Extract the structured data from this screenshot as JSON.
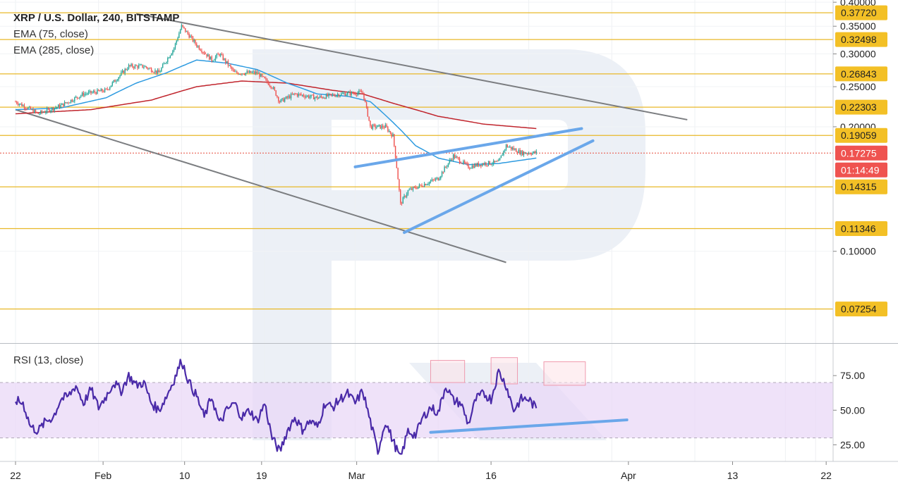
{
  "chart_data": [
    {
      "type": "candlestick",
      "title": "XRP / U.S. Dollar, 240, BITSTAMP",
      "indicators": [
        "EMA (75, close)",
        "EMA (285, close)"
      ],
      "x_ticks": [
        "22",
        "Feb",
        "10",
        "19",
        "Mar",
        "16",
        "Apr",
        "13",
        "22"
      ],
      "y_ticks": [
        "0.40000",
        "0.35000",
        "0.30000",
        "0.25000",
        "0.20000",
        "0.10000"
      ],
      "ylim": [
        0.06,
        0.405
      ],
      "scale": "log",
      "levels": [
        {
          "label": "0.37720",
          "value": 0.3772
        },
        {
          "label": "0.32498",
          "value": 0.32498
        },
        {
          "label": "0.26843",
          "value": 0.26843
        },
        {
          "label": "0.22303",
          "value": 0.22303
        },
        {
          "label": "0.19059",
          "value": 0.19059
        },
        {
          "label": "0.14315",
          "value": 0.14315
        },
        {
          "label": "0.11346",
          "value": 0.11346
        },
        {
          "label": "0.07254",
          "value": 0.07254
        }
      ],
      "current_price": {
        "label": "0.17275",
        "value": 0.17275,
        "countdown": "01:14:49"
      },
      "key_closes": [
        {
          "day": 0,
          "price": 0.23
        },
        {
          "day": 3,
          "price": 0.215
        },
        {
          "day": 6,
          "price": 0.225
        },
        {
          "day": 9,
          "price": 0.24
        },
        {
          "day": 12,
          "price": 0.245
        },
        {
          "day": 15,
          "price": 0.28
        },
        {
          "day": 17,
          "price": 0.28
        },
        {
          "day": 19,
          "price": 0.27
        },
        {
          "day": 21,
          "price": 0.31
        },
        {
          "day": 22,
          "price": 0.35
        },
        {
          "day": 24,
          "price": 0.315
        },
        {
          "day": 26,
          "price": 0.29
        },
        {
          "day": 27,
          "price": 0.3
        },
        {
          "day": 29,
          "price": 0.27
        },
        {
          "day": 32,
          "price": 0.27
        },
        {
          "day": 34,
          "price": 0.25
        },
        {
          "day": 35,
          "price": 0.23
        },
        {
          "day": 37,
          "price": 0.24
        },
        {
          "day": 40,
          "price": 0.235
        },
        {
          "day": 43,
          "price": 0.24
        },
        {
          "day": 46,
          "price": 0.242
        },
        {
          "day": 47,
          "price": 0.2
        },
        {
          "day": 49,
          "price": 0.2
        },
        {
          "day": 50,
          "price": 0.19
        },
        {
          "day": 51,
          "price": 0.13
        },
        {
          "day": 52,
          "price": 0.14
        },
        {
          "day": 54,
          "price": 0.145
        },
        {
          "day": 56,
          "price": 0.15
        },
        {
          "day": 58,
          "price": 0.17
        },
        {
          "day": 60,
          "price": 0.16
        },
        {
          "day": 62,
          "price": 0.163
        },
        {
          "day": 64,
          "price": 0.164
        },
        {
          "day": 65,
          "price": 0.18
        },
        {
          "day": 67,
          "price": 0.173
        },
        {
          "day": 69,
          "price": 0.173
        }
      ],
      "ema_75": [
        {
          "day": 0,
          "price": 0.22
        },
        {
          "day": 6,
          "price": 0.222
        },
        {
          "day": 12,
          "price": 0.235
        },
        {
          "day": 16,
          "price": 0.255
        },
        {
          "day": 20,
          "price": 0.27
        },
        {
          "day": 24,
          "price": 0.29
        },
        {
          "day": 28,
          "price": 0.285
        },
        {
          "day": 32,
          "price": 0.275
        },
        {
          "day": 36,
          "price": 0.255
        },
        {
          "day": 40,
          "price": 0.24
        },
        {
          "day": 44,
          "price": 0.237
        },
        {
          "day": 47,
          "price": 0.23
        },
        {
          "day": 50,
          "price": 0.205
        },
        {
          "day": 53,
          "price": 0.18
        },
        {
          "day": 56,
          "price": 0.168
        },
        {
          "day": 60,
          "price": 0.162
        },
        {
          "day": 64,
          "price": 0.163
        },
        {
          "day": 69,
          "price": 0.168
        }
      ],
      "ema_285": [
        {
          "day": 0,
          "price": 0.215
        },
        {
          "day": 10,
          "price": 0.22
        },
        {
          "day": 18,
          "price": 0.232
        },
        {
          "day": 24,
          "price": 0.25
        },
        {
          "day": 30,
          "price": 0.258
        },
        {
          "day": 36,
          "price": 0.255
        },
        {
          "day": 42,
          "price": 0.245
        },
        {
          "day": 46,
          "price": 0.24
        },
        {
          "day": 50,
          "price": 0.228
        },
        {
          "day": 56,
          "price": 0.212
        },
        {
          "day": 62,
          "price": 0.203
        },
        {
          "day": 69,
          "price": 0.198
        }
      ],
      "channel_lines": [
        {
          "name": "upper-channel",
          "from": {
            "day": 16,
            "price": 0.375
          },
          "to": {
            "day": 89,
            "price": 0.208
          }
        },
        {
          "name": "lower-channel",
          "from": {
            "day": 0,
            "price": 0.22
          },
          "to": {
            "day": 65,
            "price": 0.094
          }
        }
      ],
      "wedge_lines": [
        {
          "name": "wedge-upper",
          "from": {
            "day": 45,
            "price": 0.16
          },
          "to": {
            "day": 75,
            "price": 0.198
          }
        },
        {
          "name": "wedge-lower",
          "from": {
            "day": 51.5,
            "price": 0.111
          },
          "to": {
            "day": 76.5,
            "price": 0.185
          }
        }
      ]
    },
    {
      "type": "line",
      "title": "RSI (13, close)",
      "y_ticks": [
        "75.00",
        "50.00",
        "25.00"
      ],
      "ylim": [
        13,
        98
      ],
      "band": [
        30,
        70
      ],
      "key_points": [
        {
          "day": 0,
          "value": 57
        },
        {
          "day": 1,
          "value": 55
        },
        {
          "day": 2,
          "value": 38
        },
        {
          "day": 3,
          "value": 35
        },
        {
          "day": 4,
          "value": 42
        },
        {
          "day": 5,
          "value": 45
        },
        {
          "day": 6,
          "value": 58
        },
        {
          "day": 7,
          "value": 60
        },
        {
          "day": 8,
          "value": 68
        },
        {
          "day": 9,
          "value": 55
        },
        {
          "day": 10,
          "value": 65
        },
        {
          "day": 11,
          "value": 52
        },
        {
          "day": 12,
          "value": 60
        },
        {
          "day": 13,
          "value": 70
        },
        {
          "day": 14,
          "value": 64
        },
        {
          "day": 15,
          "value": 75
        },
        {
          "day": 16,
          "value": 68
        },
        {
          "day": 17,
          "value": 70
        },
        {
          "day": 18,
          "value": 55
        },
        {
          "day": 19,
          "value": 50
        },
        {
          "day": 20,
          "value": 60
        },
        {
          "day": 21,
          "value": 72
        },
        {
          "day": 22,
          "value": 86
        },
        {
          "day": 23,
          "value": 70
        },
        {
          "day": 24,
          "value": 60
        },
        {
          "day": 25,
          "value": 45
        },
        {
          "day": 26,
          "value": 60
        },
        {
          "day": 27,
          "value": 40
        },
        {
          "day": 28,
          "value": 50
        },
        {
          "day": 29,
          "value": 55
        },
        {
          "day": 30,
          "value": 45
        },
        {
          "day": 31,
          "value": 50
        },
        {
          "day": 32,
          "value": 42
        },
        {
          "day": 33,
          "value": 55
        },
        {
          "day": 34,
          "value": 30
        },
        {
          "day": 35,
          "value": 20
        },
        {
          "day": 36,
          "value": 35
        },
        {
          "day": 37,
          "value": 45
        },
        {
          "day": 38,
          "value": 36
        },
        {
          "day": 39,
          "value": 42
        },
        {
          "day": 40,
          "value": 38
        },
        {
          "day": 41,
          "value": 55
        },
        {
          "day": 42,
          "value": 52
        },
        {
          "day": 43,
          "value": 58
        },
        {
          "day": 44,
          "value": 62
        },
        {
          "day": 45,
          "value": 55
        },
        {
          "day": 46,
          "value": 64
        },
        {
          "day": 47,
          "value": 42
        },
        {
          "day": 48,
          "value": 20
        },
        {
          "day": 49,
          "value": 42
        },
        {
          "day": 50,
          "value": 28
        },
        {
          "day": 51,
          "value": 15
        },
        {
          "day": 52,
          "value": 35
        },
        {
          "day": 53,
          "value": 32
        },
        {
          "day": 54,
          "value": 45
        },
        {
          "day": 55,
          "value": 52
        },
        {
          "day": 56,
          "value": 48
        },
        {
          "day": 57,
          "value": 68
        },
        {
          "day": 58,
          "value": 57
        },
        {
          "day": 59,
          "value": 55
        },
        {
          "day": 60,
          "value": 40
        },
        {
          "day": 61,
          "value": 58
        },
        {
          "day": 62,
          "value": 62
        },
        {
          "day": 63,
          "value": 58
        },
        {
          "day": 64,
          "value": 78
        },
        {
          "day": 65,
          "value": 68
        },
        {
          "day": 66,
          "value": 50
        },
        {
          "day": 67,
          "value": 58
        },
        {
          "day": 68,
          "value": 58
        },
        {
          "day": 69,
          "value": 51
        }
      ],
      "trend_line": {
        "from": {
          "day": 55,
          "value": 34
        },
        "to": {
          "day": 81,
          "value": 43
        }
      },
      "highlight_boxes": [
        {
          "from_day": 55,
          "to_day": 59.5,
          "from_value": 70,
          "to_value": 86
        },
        {
          "from_day": 63,
          "to_day": 66.5,
          "from_value": 69,
          "to_value": 88
        },
        {
          "from_day": 70,
          "to_day": 75.5,
          "from_value": 68,
          "to_value": 85
        }
      ]
    }
  ]
}
